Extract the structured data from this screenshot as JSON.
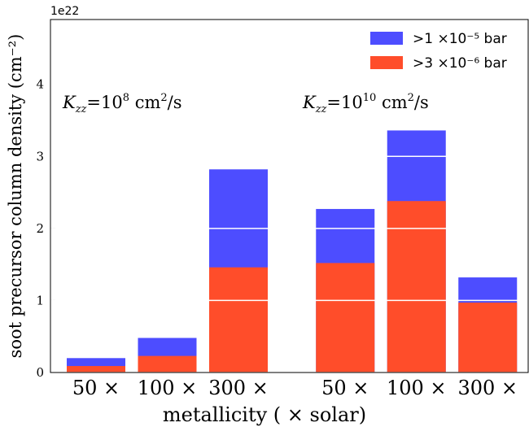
{
  "chart_data": {
    "type": "bar",
    "categories": [
      "50 ×",
      "100 ×",
      "300 ×",
      "50 ×",
      "100 ×",
      "300 ×"
    ],
    "series": [
      {
        "name": ">1 ×10⁻⁵ bar",
        "color": "#4d4dff",
        "values": [
          0.2,
          0.48,
          2.82,
          2.27,
          3.36,
          1.32
        ]
      },
      {
        "name": ">3 ×10⁻⁶ bar",
        "color": "#ff4d2a",
        "values": [
          0.09,
          0.23,
          1.46,
          1.52,
          2.38,
          0.97
        ]
      }
    ],
    "ylim": [
      0,
      4.9
    ],
    "yticks": [
      0,
      1,
      2,
      3,
      4
    ],
    "y_offset_label": "1e22",
    "ylabel": "soot precursor column density (cm⁻²)",
    "xlabel": "metallicity ( × solar)",
    "grid": true,
    "grid_color": "#ffffff",
    "legend": "upper right",
    "annotations": [
      {
        "symbol": "K",
        "subscript": "zz",
        "equals": "=10",
        "exponent": "8",
        "unit": " cm",
        "unit_exponent": "2",
        "unit_tail": "/s"
      },
      {
        "symbol": "K",
        "subscript": "zz",
        "equals": "=10",
        "exponent": "10",
        "unit": " cm",
        "unit_exponent": "2",
        "unit_tail": "/s"
      }
    ]
  }
}
